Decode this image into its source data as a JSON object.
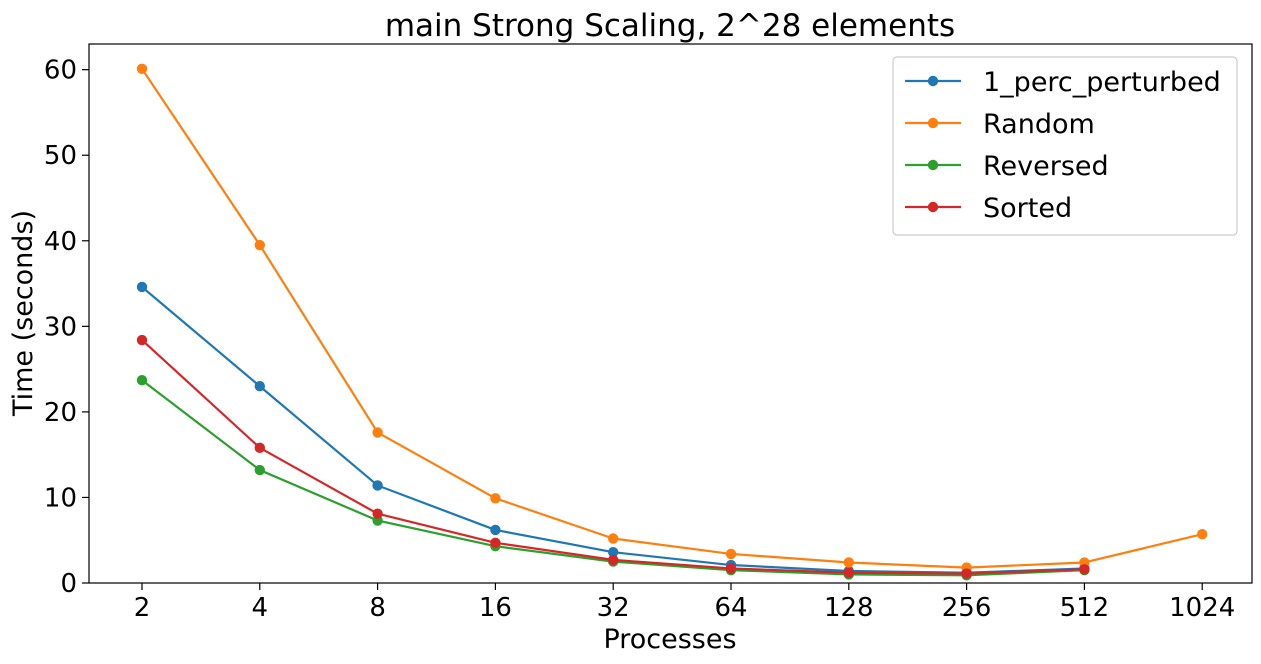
{
  "chart_data": {
    "type": "line",
    "title": "main Strong Scaling, 2^28 elements",
    "xlabel": "Processes",
    "ylabel": "Time (seconds)",
    "x": [
      "2",
      "4",
      "8",
      "16",
      "32",
      "64",
      "128",
      "256",
      "512",
      "1024"
    ],
    "ylim": [
      0,
      63
    ],
    "yticks": [
      0,
      10,
      20,
      30,
      40,
      50,
      60
    ],
    "grid": false,
    "legend_position": "top-right",
    "series": [
      {
        "name": "1_perc_perturbed",
        "color": "#1f77b4",
        "values": [
          34.6,
          23.0,
          11.4,
          6.2,
          3.6,
          2.1,
          1.4,
          1.2,
          1.7,
          null
        ]
      },
      {
        "name": "Random",
        "color": "#ff7f0e",
        "values": [
          60.1,
          39.5,
          17.6,
          9.9,
          5.2,
          3.4,
          2.4,
          1.8,
          2.4,
          5.7
        ]
      },
      {
        "name": "Reversed",
        "color": "#2ca02c",
        "values": [
          23.7,
          13.2,
          7.3,
          4.3,
          2.5,
          1.5,
          1.0,
          0.9,
          1.5,
          null
        ]
      },
      {
        "name": "Sorted",
        "color": "#d62728",
        "values": [
          28.4,
          15.8,
          8.1,
          4.7,
          2.7,
          1.7,
          1.2,
          1.1,
          1.6,
          null
        ]
      }
    ]
  }
}
